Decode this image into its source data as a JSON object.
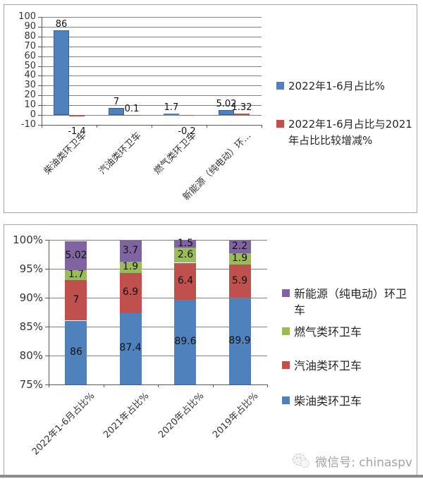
{
  "watermark": {
    "icon": "wechat-icon",
    "text": "微信号: chinaspv"
  },
  "chart_data": [
    {
      "type": "bar",
      "title": "",
      "categories": [
        "柴油类环卫车",
        "汽油类环卫车",
        "燃气类环卫车",
        "新能源（纯电动）环…"
      ],
      "series": [
        {
          "name": "2022年1-6月占比%",
          "color": "#4F81BD",
          "border": "#38618F",
          "values": [
            86,
            7,
            1.7,
            5.02
          ]
        },
        {
          "name": "2022年1-6月占比与2021年占比比较增减%",
          "color": "#C0504D",
          "border": "#8E3B39",
          "values": [
            -1.4,
            0.1,
            -0.2,
            1.32
          ]
        }
      ],
      "data_labels": [
        [
          "86",
          "7",
          "1.7",
          "5.02"
        ],
        [
          "-1.4",
          "0.1",
          "-0.2",
          "1.32"
        ]
      ],
      "ylim": [
        -10,
        100
      ],
      "ytick_step": 10,
      "ytick_labels": [
        "100",
        "90",
        "80",
        "70",
        "60",
        "50",
        "40",
        "30",
        "20",
        "10",
        "0",
        "-10"
      ],
      "grid": true,
      "legend_position": "right"
    },
    {
      "type": "bar",
      "subtype": "stacked-percent",
      "title": "",
      "categories": [
        "2022年1-6月占比%",
        "2021年占比%",
        "2020年占比%",
        "2019年占比%"
      ],
      "series": [
        {
          "name": "柴油类环卫车",
          "color": "#4F81BD",
          "values": [
            86,
            87.4,
            89.6,
            89.9
          ]
        },
        {
          "name": "汽油类环卫车",
          "color": "#C0504D",
          "values": [
            7,
            6.9,
            6.4,
            5.9
          ]
        },
        {
          "name": "燃气类环卫车",
          "color": "#9BBB59",
          "values": [
            1.7,
            1.9,
            2.6,
            1.9
          ]
        },
        {
          "name": "新能源（纯电动）环卫车",
          "color": "#8064A2",
          "values": [
            5.02,
            3.7,
            1.5,
            2.2
          ]
        }
      ],
      "data_labels": [
        [
          "86",
          "87.4",
          "89.6",
          "89.9"
        ],
        [
          "7",
          "6.9",
          "6.4",
          "5.9"
        ],
        [
          "1.7",
          "1.9",
          "2.6",
          "1.9"
        ],
        [
          "5.02",
          "3.7",
          "1.5",
          "2.2"
        ]
      ],
      "ylim": [
        75,
        100
      ],
      "yticks": [
        100,
        95,
        90,
        85,
        80,
        75
      ],
      "ytick_labels": [
        "100%",
        "95%",
        "90%",
        "85%",
        "80%",
        "75%"
      ],
      "grid": true,
      "legend_position": "right",
      "legend_reversed": true
    }
  ]
}
